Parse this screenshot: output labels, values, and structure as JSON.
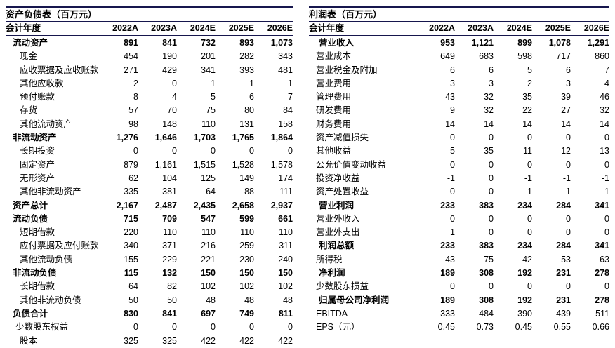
{
  "unit_note": "百万元",
  "colors": {
    "rule": "#16164d",
    "text": "#000000"
  },
  "tables": [
    {
      "id": "balance-sheet",
      "title": "资产负债表（百万元）",
      "header": [
        "会计年度",
        "2022A",
        "2023A",
        "2024E",
        "2025E",
        "2026E"
      ],
      "rows": [
        {
          "label": "流动资产",
          "values": [
            "891",
            "841",
            "732",
            "893",
            "1,073"
          ],
          "bold": true,
          "indent": 0
        },
        {
          "label": "现金",
          "values": [
            "454",
            "190",
            "201",
            "282",
            "343"
          ],
          "bold": false,
          "indent": 2
        },
        {
          "label": "应收票据及应收账款",
          "values": [
            "271",
            "429",
            "341",
            "393",
            "481"
          ],
          "bold": false,
          "indent": 2
        },
        {
          "label": "其他应收款",
          "values": [
            "2",
            "0",
            "1",
            "1",
            "1"
          ],
          "bold": false,
          "indent": 2
        },
        {
          "label": "预付账款",
          "values": [
            "8",
            "4",
            "5",
            "6",
            "7"
          ],
          "bold": false,
          "indent": 2
        },
        {
          "label": "存货",
          "values": [
            "57",
            "70",
            "75",
            "80",
            "84"
          ],
          "bold": false,
          "indent": 2
        },
        {
          "label": "其他流动资产",
          "values": [
            "98",
            "148",
            "110",
            "131",
            "158"
          ],
          "bold": false,
          "indent": 2
        },
        {
          "label": "非流动资产",
          "values": [
            "1,276",
            "1,646",
            "1,703",
            "1,765",
            "1,864"
          ],
          "bold": true,
          "indent": 0
        },
        {
          "label": "长期投资",
          "values": [
            "0",
            "0",
            "0",
            "0",
            "0"
          ],
          "bold": false,
          "indent": 2
        },
        {
          "label": "固定资产",
          "values": [
            "879",
            "1,161",
            "1,515",
            "1,528",
            "1,578"
          ],
          "bold": false,
          "indent": 2
        },
        {
          "label": "无形资产",
          "values": [
            "62",
            "104",
            "125",
            "149",
            "174"
          ],
          "bold": false,
          "indent": 2
        },
        {
          "label": "其他非流动资产",
          "values": [
            "335",
            "381",
            "64",
            "88",
            "111"
          ],
          "bold": false,
          "indent": 2
        },
        {
          "label": "资产总计",
          "values": [
            "2,167",
            "2,487",
            "2,435",
            "2,658",
            "2,937"
          ],
          "bold": true,
          "indent": 0
        },
        {
          "label": "流动负债",
          "values": [
            "715",
            "709",
            "547",
            "599",
            "661"
          ],
          "bold": true,
          "indent": 0
        },
        {
          "label": "短期借款",
          "values": [
            "220",
            "110",
            "110",
            "110",
            "110"
          ],
          "bold": false,
          "indent": 2
        },
        {
          "label": "应付票据及应付账款",
          "values": [
            "340",
            "371",
            "216",
            "259",
            "311"
          ],
          "bold": false,
          "indent": 2
        },
        {
          "label": "其他流动负债",
          "values": [
            "155",
            "229",
            "221",
            "230",
            "240"
          ],
          "bold": false,
          "indent": 2
        },
        {
          "label": "非流动负债",
          "values": [
            "115",
            "132",
            "150",
            "150",
            "150"
          ],
          "bold": true,
          "indent": 0
        },
        {
          "label": "长期借款",
          "values": [
            "64",
            "82",
            "102",
            "102",
            "102"
          ],
          "bold": false,
          "indent": 2
        },
        {
          "label": "其他非流动负债",
          "values": [
            "50",
            "50",
            "48",
            "48",
            "48"
          ],
          "bold": false,
          "indent": 2
        },
        {
          "label": "负债合计",
          "values": [
            "830",
            "841",
            "697",
            "749",
            "811"
          ],
          "bold": true,
          "indent": 0
        },
        {
          "label": "少数股东权益",
          "values": [
            "0",
            "0",
            "0",
            "0",
            "0"
          ],
          "bold": false,
          "indent": 1
        },
        {
          "label": "股本",
          "values": [
            "325",
            "325",
            "422",
            "422",
            "422"
          ],
          "bold": false,
          "indent": 2
        }
      ]
    },
    {
      "id": "income-statement",
      "title": "利润表（百万元）",
      "header": [
        "会计年度",
        "2022A",
        "2023A",
        "2024E",
        "2025E",
        "2026E"
      ],
      "rows": [
        {
          "label": "营业收入",
          "values": [
            "953",
            "1,121",
            "899",
            "1,078",
            "1,291"
          ],
          "bold": true,
          "indent": 1
        },
        {
          "label": "营业成本",
          "values": [
            "649",
            "683",
            "598",
            "717",
            "860"
          ],
          "bold": false,
          "indent": 0
        },
        {
          "label": "营业税金及附加",
          "values": [
            "6",
            "6",
            "5",
            "6",
            "7"
          ],
          "bold": false,
          "indent": 0
        },
        {
          "label": "营业费用",
          "values": [
            "3",
            "3",
            "2",
            "3",
            "4"
          ],
          "bold": false,
          "indent": 0
        },
        {
          "label": "管理费用",
          "values": [
            "43",
            "32",
            "35",
            "39",
            "46"
          ],
          "bold": false,
          "indent": 0
        },
        {
          "label": "研发费用",
          "values": [
            "9",
            "32",
            "22",
            "27",
            "32"
          ],
          "bold": false,
          "indent": 0
        },
        {
          "label": "财务费用",
          "values": [
            "14",
            "14",
            "14",
            "14",
            "14"
          ],
          "bold": false,
          "indent": 0
        },
        {
          "label": "资产减值损失",
          "values": [
            "0",
            "0",
            "0",
            "0",
            "0"
          ],
          "bold": false,
          "indent": 0
        },
        {
          "label": "其他收益",
          "values": [
            "5",
            "35",
            "11",
            "12",
            "13"
          ],
          "bold": false,
          "indent": 0
        },
        {
          "label": "公允价值变动收益",
          "values": [
            "0",
            "0",
            "0",
            "0",
            "0"
          ],
          "bold": false,
          "indent": 0
        },
        {
          "label": "投资净收益",
          "values": [
            "-1",
            "0",
            "-1",
            "-1",
            "-1"
          ],
          "bold": false,
          "indent": 0
        },
        {
          "label": "资产处置收益",
          "values": [
            "0",
            "0",
            "1",
            "1",
            "1"
          ],
          "bold": false,
          "indent": 0
        },
        {
          "label": "营业利润",
          "values": [
            "233",
            "383",
            "234",
            "284",
            "341"
          ],
          "bold": true,
          "indent": 1
        },
        {
          "label": "营业外收入",
          "values": [
            "0",
            "0",
            "0",
            "0",
            "0"
          ],
          "bold": false,
          "indent": 0
        },
        {
          "label": "营业外支出",
          "values": [
            "1",
            "0",
            "0",
            "0",
            "0"
          ],
          "bold": false,
          "indent": 0
        },
        {
          "label": "利润总额",
          "values": [
            "233",
            "383",
            "234",
            "284",
            "341"
          ],
          "bold": true,
          "indent": 1
        },
        {
          "label": "所得税",
          "values": [
            "43",
            "75",
            "42",
            "53",
            "63"
          ],
          "bold": false,
          "indent": 0
        },
        {
          "label": "净利润",
          "values": [
            "189",
            "308",
            "192",
            "231",
            "278"
          ],
          "bold": true,
          "indent": 1
        },
        {
          "label": "少数股东损益",
          "values": [
            "0",
            "0",
            "0",
            "0",
            "0"
          ],
          "bold": false,
          "indent": 0
        },
        {
          "label": "归属母公司净利润",
          "values": [
            "189",
            "308",
            "192",
            "231",
            "278"
          ],
          "bold": true,
          "indent": 1
        },
        {
          "label": "EBITDA",
          "values": [
            "333",
            "484",
            "390",
            "439",
            "511"
          ],
          "bold": false,
          "indent": 0
        },
        {
          "label": "EPS（元）",
          "values": [
            "0.45",
            "0.73",
            "0.45",
            "0.55",
            "0.66"
          ],
          "bold": false,
          "indent": 0
        }
      ]
    }
  ]
}
